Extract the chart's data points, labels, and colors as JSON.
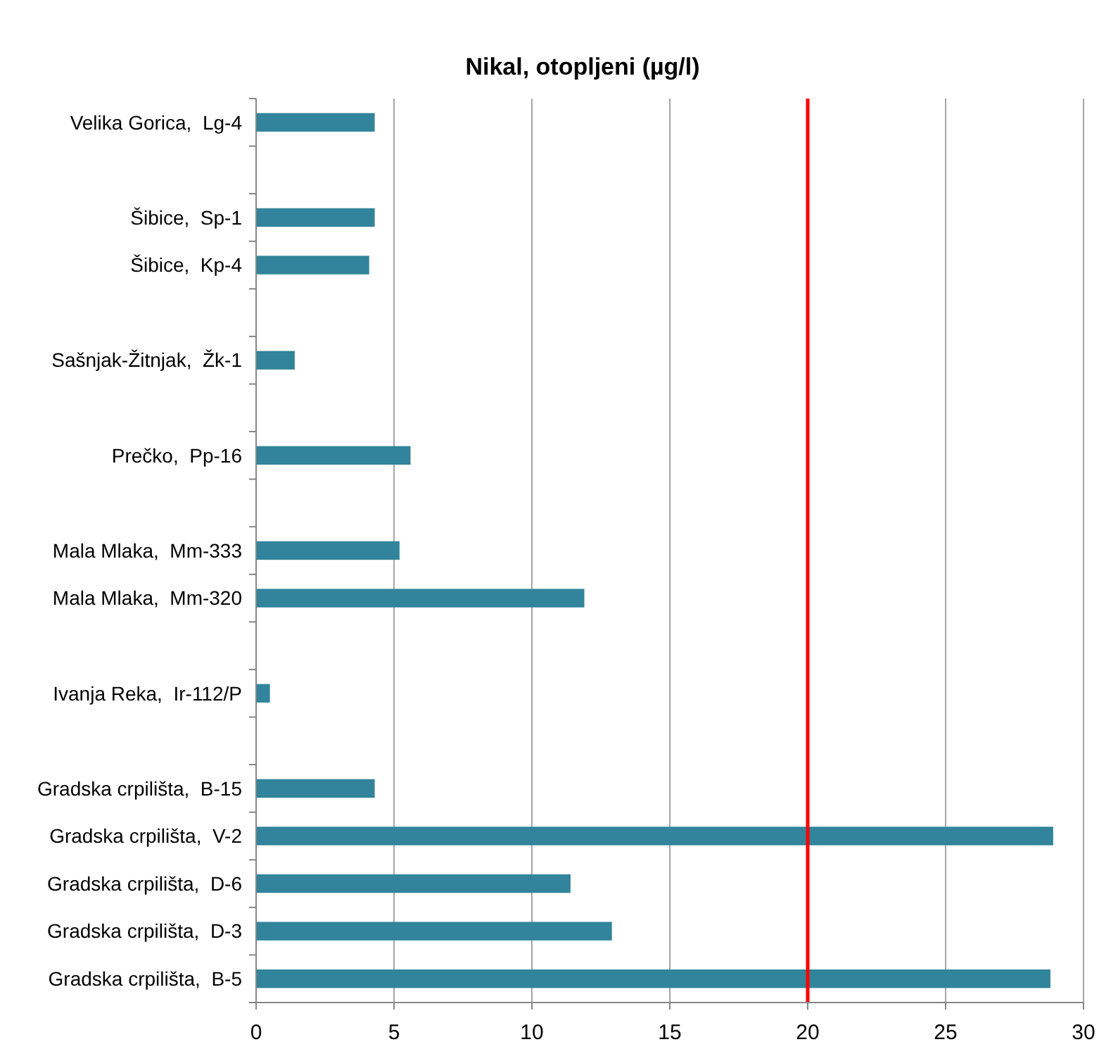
{
  "chart_data": {
    "type": "bar",
    "orientation": "horizontal",
    "title": "Nikal, otopljeni (µg/l)",
    "categories": [
      "Velika Gorica,  Lg-4",
      null,
      "Šibice,  Sp-1",
      "Šibice,  Kp-4",
      null,
      "Sašnjak-Žitnjak,  Žk-1",
      null,
      "Prečko,  Pp-16",
      null,
      "Mala Mlaka,  Mm-333",
      "Mala Mlaka,  Mm-320",
      null,
      "Ivanja Reka,  Ir-112/P",
      null,
      "Gradska crpilišta,  B-15",
      "Gradska crpilišta,  V-2",
      "Gradska crpilišta,  D-6",
      "Gradska crpilišta,  D-3",
      "Gradska crpilišta,  B-5"
    ],
    "values": [
      4.3,
      null,
      4.3,
      4.1,
      null,
      1.4,
      null,
      5.6,
      null,
      5.2,
      11.9,
      null,
      0.5,
      null,
      4.3,
      28.9,
      11.4,
      12.9,
      28.8
    ],
    "color": "#31849b",
    "xlim": [
      0,
      30
    ],
    "xticks": [
      0,
      5,
      10,
      15,
      20,
      25,
      30
    ],
    "grid": "x",
    "ref_lines": [
      {
        "axis": "x",
        "value": 20,
        "color": "#ff0000"
      }
    ]
  }
}
